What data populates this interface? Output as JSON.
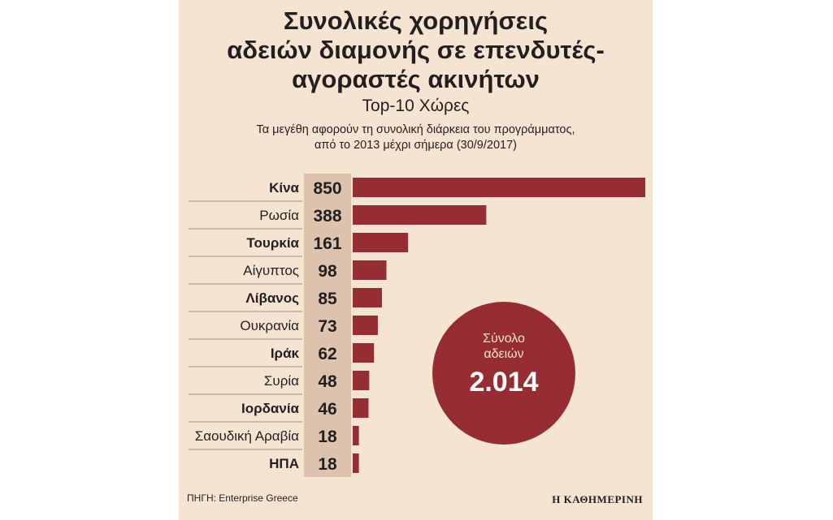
{
  "header": {
    "title_lines": [
      "Συνολικές χορηγήσεις",
      "αδειών διαμονής σε επενδυτές-",
      "αγοραστές ακινήτων"
    ],
    "subtitle": "Top-10 Χώρες",
    "note_lines": [
      "Τα μεγέθη αφορούν τη συνολική διάρκεια του προγράμματος,",
      "από το 2013 μέχρι σήμερα (30/9/2017)"
    ]
  },
  "chart_data": {
    "type": "bar",
    "orientation": "horizontal",
    "categories": [
      "Κίνα",
      "Ρωσία",
      "Τουρκία",
      "Αίγυπτος",
      "Λίβανος",
      "Ουκρανία",
      "Ιράκ",
      "Συρία",
      "Ιορδανία",
      "Σαουδική Αραβία",
      "ΗΠΑ"
    ],
    "values": [
      850,
      388,
      161,
      98,
      85,
      73,
      62,
      48,
      46,
      18,
      18
    ],
    "value_labels": [
      "850",
      "388",
      "161",
      "98",
      "85",
      "73",
      "62",
      "48",
      "46",
      "18",
      "18"
    ],
    "bold_categories": [
      "Κίνα",
      "Τουρκία",
      "Λίβανος",
      "Ιράκ",
      "Ιορδανία",
      "ΗΠΑ"
    ],
    "xlim": [
      0,
      850
    ],
    "grid": false,
    "legend": "none",
    "total": {
      "label_lines": [
        "Σύνολο",
        "αδειών"
      ],
      "value": "2.014"
    }
  },
  "footer": {
    "source": "ΠΗΓΗ: Enterprise Greece",
    "brand": "Η ΚΑΘΗΜΕΡΙΝΗ"
  },
  "colors": {
    "background": "#f6e4d3",
    "value_column": "#ddc3ad",
    "bar": "#952d33",
    "circle": "#952d33",
    "text": "#231f20",
    "divider": "#9c9088"
  }
}
